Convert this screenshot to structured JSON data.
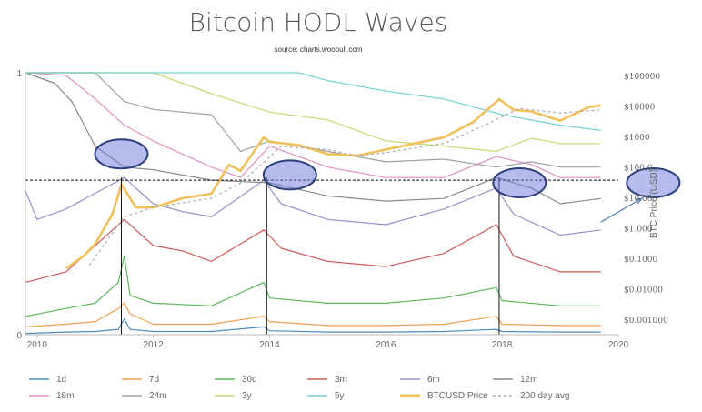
{
  "chart_data": {
    "type": "line",
    "title": "Bitcoin HODL Waves",
    "subtitle": "source: charts.woobull.com",
    "x_ticks": [
      "2010",
      "2012",
      "2014",
      "2016",
      "2018",
      "2020"
    ],
    "xlim": [
      2009.8,
      2020.0
    ],
    "left_ticks": [
      "0",
      "1"
    ],
    "ylim_left": [
      0,
      1
    ],
    "right_axis_label": "BTC Price (USD)",
    "right_ticks": [
      "$100000",
      "$10000",
      "$1000",
      "$100.0",
      "$10.00",
      "$1.000",
      "$0.1000",
      "$0.01000",
      "$0.001000"
    ],
    "ylim_right_log": [
      -3,
      5
    ],
    "legend_position": "bottom",
    "grid": false,
    "series": [
      {
        "name": "1d",
        "color": "#4a8fbf",
        "x": [
          2009.8,
          2010.5,
          2011.0,
          2011.4,
          2011.5,
          2011.6,
          2012.0,
          2013.0,
          2013.9,
          2014.0,
          2015.0,
          2016.0,
          2017.0,
          2017.9,
          2018.0,
          2019.0,
          2019.7
        ],
        "y": [
          0.005,
          0.01,
          0.012,
          0.02,
          0.06,
          0.02,
          0.012,
          0.012,
          0.03,
          0.015,
          0.01,
          0.01,
          0.012,
          0.02,
          0.012,
          0.01,
          0.01
        ]
      },
      {
        "name": "7d",
        "color": "#f0a050",
        "x": [
          2009.8,
          2010.5,
          2011.0,
          2011.4,
          2011.5,
          2011.6,
          2012.0,
          2013.0,
          2013.9,
          2014.0,
          2015.0,
          2016.0,
          2017.0,
          2017.9,
          2018.0,
          2019.0,
          2019.7
        ],
        "y": [
          0.03,
          0.04,
          0.05,
          0.1,
          0.12,
          0.08,
          0.04,
          0.04,
          0.07,
          0.05,
          0.035,
          0.035,
          0.04,
          0.07,
          0.04,
          0.035,
          0.035
        ]
      },
      {
        "name": "30d",
        "color": "#5cb85c",
        "x": [
          2009.8,
          2010.5,
          2011.0,
          2011.4,
          2011.5,
          2011.6,
          2012.0,
          2013.0,
          2013.9,
          2014.0,
          2015.0,
          2016.0,
          2017.0,
          2017.9,
          2018.0,
          2019.0,
          2019.7
        ],
        "y": [
          0.07,
          0.1,
          0.12,
          0.2,
          0.3,
          0.15,
          0.12,
          0.11,
          0.2,
          0.14,
          0.12,
          0.12,
          0.14,
          0.18,
          0.13,
          0.11,
          0.11
        ]
      },
      {
        "name": "3m",
        "color": "#d05a5a",
        "x": [
          2009.8,
          2010.5,
          2011.0,
          2011.5,
          2012.0,
          2012.5,
          2013.0,
          2013.9,
          2014.2,
          2015.0,
          2016.0,
          2017.0,
          2017.9,
          2018.2,
          2019.0,
          2019.7
        ],
        "y": [
          0.2,
          0.24,
          0.34,
          0.44,
          0.34,
          0.32,
          0.28,
          0.4,
          0.33,
          0.28,
          0.26,
          0.31,
          0.42,
          0.3,
          0.24,
          0.24
        ]
      },
      {
        "name": "6m",
        "color": "#9b90c8",
        "x": [
          2009.8,
          2010.0,
          2010.5,
          2011.0,
          2011.5,
          2012.0,
          2012.5,
          2013.0,
          2013.9,
          2014.2,
          2015.0,
          2016.0,
          2017.0,
          2017.9,
          2018.2,
          2019.0,
          2019.7
        ],
        "y": [
          0.55,
          0.44,
          0.48,
          0.54,
          0.6,
          0.5,
          0.47,
          0.45,
          0.59,
          0.5,
          0.44,
          0.42,
          0.48,
          0.56,
          0.46,
          0.38,
          0.4
        ]
      },
      {
        "name": "12m",
        "color": "#8a8a8a",
        "x": [
          2009.8,
          2010.3,
          2010.6,
          2011.0,
          2011.5,
          2012.0,
          2013.0,
          2014.0,
          2015.0,
          2016.0,
          2017.0,
          2017.9,
          2018.5,
          2019.0,
          2019.7
        ],
        "y": [
          1.0,
          0.96,
          0.89,
          0.72,
          0.64,
          0.63,
          0.59,
          0.58,
          0.53,
          0.51,
          0.52,
          0.6,
          0.56,
          0.5,
          0.52
        ]
      },
      {
        "name": "18m",
        "color": "#e090c0",
        "x": [
          2009.8,
          2010.5,
          2011.0,
          2011.5,
          2012.0,
          2013.0,
          2013.5,
          2014.0,
          2015.0,
          2016.0,
          2017.0,
          2017.9,
          2018.5,
          2019.0,
          2019.7
        ],
        "y": [
          1.0,
          0.99,
          0.9,
          0.8,
          0.74,
          0.64,
          0.6,
          0.72,
          0.64,
          0.6,
          0.6,
          0.68,
          0.65,
          0.6,
          0.6
        ]
      },
      {
        "name": "24m",
        "color": "#a0a0a0",
        "x": [
          2009.8,
          2011.0,
          2011.5,
          2012.0,
          2013.0,
          2013.5,
          2014.0,
          2015.0,
          2016.0,
          2017.0,
          2017.9,
          2018.5,
          2019.0,
          2019.7
        ],
        "y": [
          1.0,
          1.0,
          0.89,
          0.86,
          0.84,
          0.7,
          0.74,
          0.7,
          0.66,
          0.67,
          0.64,
          0.66,
          0.64,
          0.64
        ]
      },
      {
        "name": "3y",
        "color": "#c8d870",
        "x": [
          2009.8,
          2012.0,
          2012.5,
          2013.0,
          2014.0,
          2015.0,
          2016.0,
          2017.0,
          2017.9,
          2018.5,
          2019.0,
          2019.7
        ],
        "y": [
          1.0,
          1.0,
          0.96,
          0.92,
          0.85,
          0.82,
          0.74,
          0.72,
          0.7,
          0.75,
          0.73,
          0.73
        ]
      },
      {
        "name": "5y",
        "color": "#70d0d0",
        "x": [
          2009.8,
          2014.5,
          2015.0,
          2016.0,
          2017.0,
          2018.0,
          2019.0,
          2019.7
        ],
        "y": [
          1.0,
          1.0,
          0.97,
          0.93,
          0.9,
          0.84,
          0.8,
          0.78
        ]
      },
      {
        "name": "BTCUSD Price",
        "color": "#f2c05a",
        "axis": "right",
        "log": true,
        "x": [
          2010.5,
          2010.8,
          2011.0,
          2011.3,
          2011.45,
          2011.7,
          2012.0,
          2012.5,
          2013.0,
          2013.3,
          2013.5,
          2013.9,
          2014.0,
          2014.5,
          2015.0,
          2015.5,
          2016.0,
          2016.5,
          2017.0,
          2017.5,
          2017.95,
          2018.2,
          2018.5,
          2019.0,
          2019.5,
          2019.7
        ],
        "y": [
          -1.3,
          -0.9,
          -0.5,
          0.5,
          1.45,
          0.7,
          0.7,
          1.0,
          1.15,
          2.1,
          1.9,
          3.0,
          2.85,
          2.75,
          2.45,
          2.4,
          2.6,
          2.8,
          3.0,
          3.5,
          4.25,
          3.9,
          3.85,
          3.55,
          4.0,
          4.05
        ]
      },
      {
        "name": "200 day avg",
        "color": "#aaaaaa",
        "axis": "right",
        "log": true,
        "dashed": true,
        "x": [
          2010.9,
          2011.5,
          2012.0,
          2012.5,
          2013.0,
          2013.5,
          2014.2,
          2015.0,
          2015.5,
          2016.0,
          2017.0,
          2017.7,
          2018.3,
          2019.0,
          2019.7
        ],
        "y": [
          -1.2,
          0.4,
          0.7,
          0.85,
          1.0,
          1.5,
          2.7,
          2.6,
          2.4,
          2.5,
          2.8,
          3.4,
          3.95,
          3.8,
          3.9
        ]
      }
    ],
    "annotations": {
      "vertical_lines_x": [
        2011.45,
        2013.95,
        2017.95
      ],
      "horizontal_dashed_y": 0.59,
      "ellipse_centers": [
        [
          2011.45,
          0.69
        ],
        [
          2014.35,
          0.61
        ],
        [
          2018.3,
          0.58
        ],
        [
          2020.6,
          0.58
        ]
      ],
      "arrow": {
        "from": [
          2019.7,
          0.43
        ],
        "to": [
          2020.4,
          0.52
        ]
      }
    }
  }
}
